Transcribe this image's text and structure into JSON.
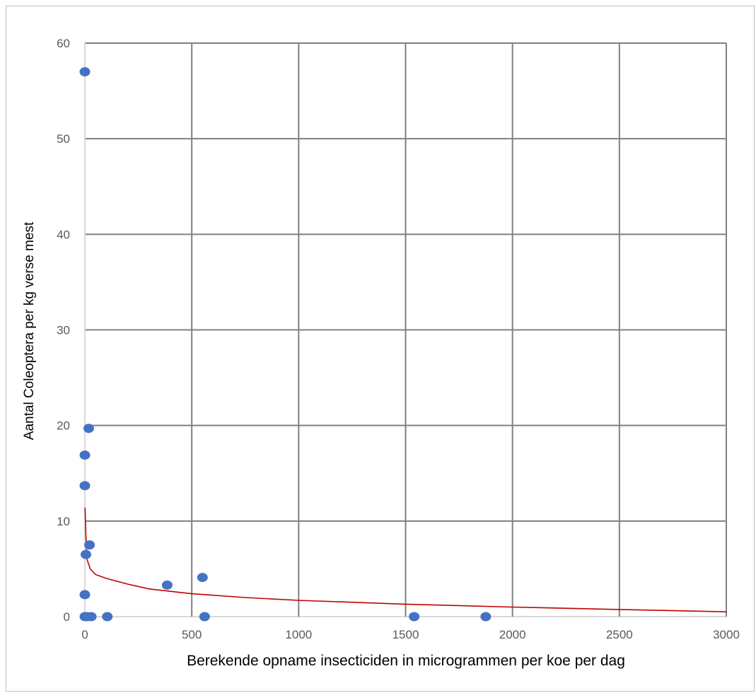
{
  "chart_data": {
    "type": "scatter",
    "title": "",
    "xlabel": "Berekende opname insecticiden in microgrammen per koe per dag",
    "ylabel": "Aantal Coleoptera per kg verse mest",
    "xlim": [
      0,
      3000
    ],
    "ylim": [
      0,
      60
    ],
    "xticks": [
      0,
      500,
      1000,
      1500,
      2000,
      2500,
      3000
    ],
    "yticks": [
      0,
      10,
      20,
      30,
      40,
      50,
      60
    ],
    "grid": true,
    "legend": "none",
    "colors": {
      "points": "#4472C4",
      "trend": "#C00000",
      "grid": "#808080",
      "axis": "#d9d9d9"
    },
    "series": [
      {
        "type": "scatter",
        "points": [
          {
            "x": 0,
            "y": 57
          },
          {
            "x": 18,
            "y": 19.7
          },
          {
            "x": 0,
            "y": 16.9
          },
          {
            "x": 0,
            "y": 13.7
          },
          {
            "x": 22,
            "y": 7.5
          },
          {
            "x": 5,
            "y": 6.5
          },
          {
            "x": 0,
            "y": 2.3
          },
          {
            "x": 0,
            "y": 0
          },
          {
            "x": 10,
            "y": 0
          },
          {
            "x": 30,
            "y": 0
          },
          {
            "x": 105,
            "y": 0
          },
          {
            "x": 385,
            "y": 3.3
          },
          {
            "x": 550,
            "y": 4.1
          },
          {
            "x": 560,
            "y": 0
          },
          {
            "x": 1540,
            "y": 0
          },
          {
            "x": 1875,
            "y": 0
          }
        ]
      },
      {
        "type": "line",
        "trend": "logarithmic",
        "points": [
          {
            "x": 1,
            "y": 11.4
          },
          {
            "x": 5,
            "y": 8.4
          },
          {
            "x": 10,
            "y": 6.0
          },
          {
            "x": 25,
            "y": 5.0
          },
          {
            "x": 50,
            "y": 4.4
          },
          {
            "x": 100,
            "y": 4.0
          },
          {
            "x": 200,
            "y": 3.4
          },
          {
            "x": 300,
            "y": 2.9
          },
          {
            "x": 500,
            "y": 2.4
          },
          {
            "x": 750,
            "y": 2.0
          },
          {
            "x": 1000,
            "y": 1.7
          },
          {
            "x": 1500,
            "y": 1.3
          },
          {
            "x": 2000,
            "y": 1.0
          },
          {
            "x": 2500,
            "y": 0.75
          },
          {
            "x": 3000,
            "y": 0.5
          }
        ]
      }
    ]
  }
}
